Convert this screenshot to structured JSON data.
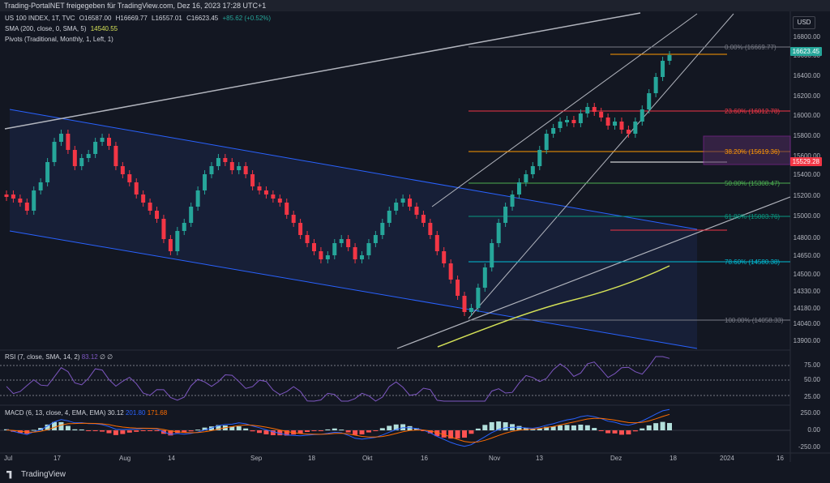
{
  "header": {
    "title": "Trading-PortalNET freigegeben für TradingView.com, Dez 16, 2023 17:28 UTC+1"
  },
  "legend": {
    "symbol": "US 100 INDEX, 1T, TVC",
    "o": "O16587.00",
    "h": "H16669.77",
    "l": "L16557.01",
    "c": "C16623.45",
    "change": "+85.62 (+0.52%)",
    "sma_label": "SMA (200, close, 0, SMA, 5)",
    "sma_value": "14540.55",
    "pivots_label": "Pivots (Traditional, Monthly, 1, Left, 1)"
  },
  "currency": "USD",
  "price_axis": [
    "16800.00",
    "16600.00",
    "16400.00",
    "16200.00",
    "16000.00",
    "15800.00",
    "15600.00",
    "15400.00",
    "15200.00",
    "15000.00",
    "14800.00",
    "14650.00",
    "14500.00",
    "14330.00",
    "14180.00",
    "14040.00",
    "13900.00"
  ],
  "price_tags": {
    "last": "16623.45",
    "level": "15529.28"
  },
  "fib": [
    {
      "label": "0.00% (16669.77)",
      "color": "#787b86"
    },
    {
      "label": "23.60% (16012.78)",
      "color": "#f23645"
    },
    {
      "label": "38.20% (15619.36)",
      "color": "#ff9800"
    },
    {
      "label": "50.00% (15308.47)",
      "color": "#4caf50"
    },
    {
      "label": "61.80% (15003.76)",
      "color": "#089981"
    },
    {
      "label": "78.60% (14580.38)",
      "color": "#00bcd4"
    },
    {
      "label": "100.00% (14058.33)",
      "color": "#787b86"
    }
  ],
  "rsi": {
    "label": "RSI (7, close, SMA, 14, 2)",
    "value": "83.12",
    "extra": "∅ ∅",
    "axis": [
      "75.00",
      "50.00",
      "25.00"
    ]
  },
  "macd": {
    "label": "MACD (6, 13, close, 4, EMA, EMA)",
    "v1": "30.12",
    "v2": "201.80",
    "v3": "171.68",
    "axis": [
      "250.00",
      "0.00",
      "-250.00"
    ]
  },
  "time_axis": [
    "Jul",
    "17",
    "Aug",
    "14",
    "Sep",
    "18",
    "Okt",
    "16",
    "Nov",
    "13",
    "Dez",
    "18",
    "2024",
    "16"
  ],
  "brand": "TradingView",
  "colors": {
    "up": "#26a69a",
    "down": "#f23645",
    "sma": "#d4e157",
    "channel": "#2962ff"
  }
}
